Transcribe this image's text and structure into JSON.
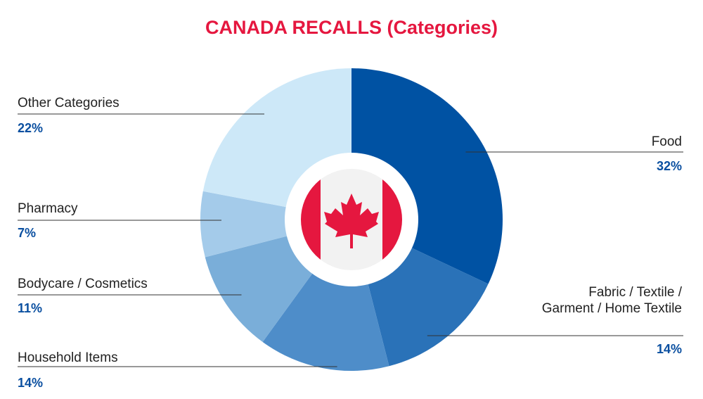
{
  "chart_data": {
    "type": "pie",
    "title": "CANADA RECALLS (Categories)",
    "categories": [
      "Food",
      "Fabric / Textile / Garment / Home Textile",
      "Household Items",
      "Bodycare / Cosmetics",
      "Pharmacy",
      "Other Categories"
    ],
    "label_lines": [
      [
        "Food"
      ],
      [
        "Fabric / Textile /",
        "Garment / Home Textile"
      ],
      [
        "Household Items"
      ],
      [
        "Bodycare / Cosmetics"
      ],
      [
        "Pharmacy"
      ],
      [
        "Other Categories"
      ]
    ],
    "values": [
      32,
      14,
      14,
      11,
      7,
      22
    ],
    "value_labels": [
      "32%",
      "14%",
      "14%",
      "11%",
      "7%",
      "22%"
    ],
    "colors": [
      "#0052a3",
      "#2a72b8",
      "#4e8dc9",
      "#7aaed9",
      "#a4cbea",
      "#cde8f8"
    ],
    "legend": "none",
    "center_icon": "canada-flag-icon"
  },
  "colors": {
    "title": "#e5173f",
    "percent": "#0a4fa0",
    "flag_red": "#e5173f",
    "center_disc": "#f2f2f2"
  }
}
